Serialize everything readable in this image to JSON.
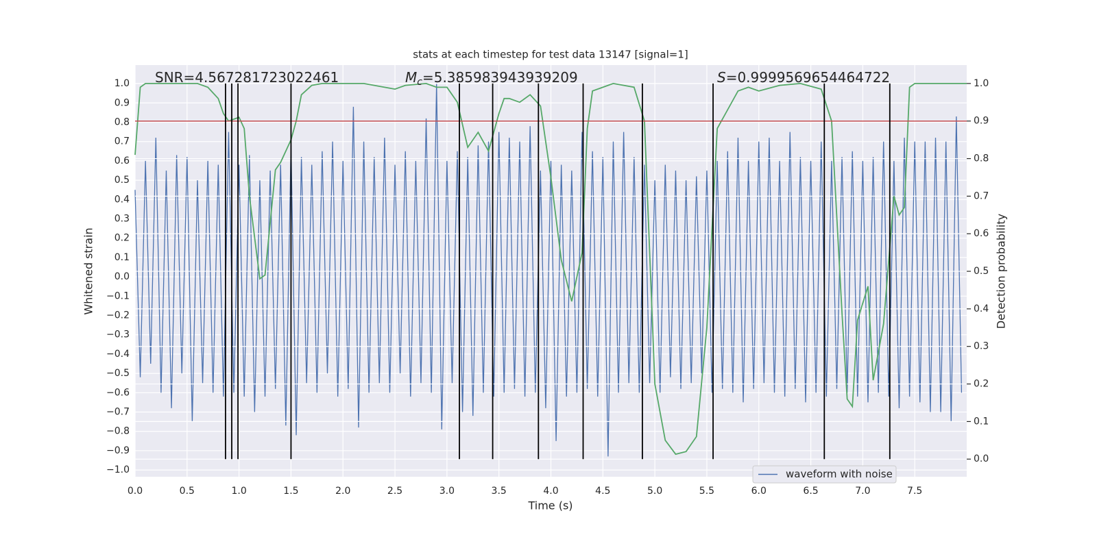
{
  "chart_data": {
    "type": "line",
    "title": "stats at each timestep for test data 13147 [signal=1]",
    "xlabel": "Time (s)",
    "ylabel": "Whitened strain",
    "y2label": "Detection probability",
    "xlim": [
      0,
      8
    ],
    "ylim": [
      -1.035,
      1.096
    ],
    "y2lim": [
      -0.047,
      1.049
    ],
    "xticks": [
      {
        "value": 0,
        "label": "0.0"
      },
      0.5,
      {
        "value": 1,
        "label": "1.0"
      },
      1.5,
      {
        "value": 2,
        "label": "2.0"
      },
      2.5,
      {
        "value": 3,
        "label": "3.0"
      },
      3.5,
      {
        "value": 4,
        "label": "4.0"
      },
      4.5,
      {
        "value": 5,
        "label": "5.0"
      },
      5.5,
      {
        "value": 6,
        "label": "6.0"
      },
      6.5,
      {
        "value": 7,
        "label": "7.0"
      },
      7.5
    ],
    "yticks": [
      {
        "value": -1,
        "label": "−1.0"
      },
      {
        "value": -0.9,
        "label": "−0.9"
      },
      {
        "value": -0.8,
        "label": "−0.8"
      },
      {
        "value": -0.7,
        "label": "−0.7"
      },
      {
        "value": -0.6,
        "label": "−0.6"
      },
      {
        "value": -0.5,
        "label": "−0.5"
      },
      {
        "value": -0.4,
        "label": "−0.4"
      },
      {
        "value": -0.3,
        "label": "−0.3"
      },
      {
        "value": -0.2,
        "label": "−0.2"
      },
      {
        "value": -0.1,
        "label": "−0.1"
      },
      {
        "value": 0,
        "label": "0.0"
      },
      0.1,
      0.2,
      0.3,
      0.4,
      0.5,
      0.6,
      0.7,
      0.8,
      0.9,
      {
        "value": 1,
        "label": "1.0"
      }
    ],
    "y2ticks": [
      {
        "value": 0,
        "label": "0.0"
      },
      0.1,
      0.2,
      0.3,
      0.4,
      0.5,
      0.6,
      0.7,
      0.8,
      0.9,
      {
        "value": 1,
        "label": "1.0"
      }
    ],
    "grid": true,
    "legend": "lower right",
    "annotations": [
      {
        "text": "SNR=4.567281723022461"
      },
      {
        "symbol": "M",
        "subscript": "c",
        "text": "=5.385983943939209"
      },
      {
        "symbol": "S",
        "text": "=0.9999569654464722"
      }
    ],
    "hline": {
      "value": 0.9,
      "axis": "y2",
      "color": "#c44e52"
    },
    "vlines": [
      0.87,
      0.93,
      0.99,
      1.5,
      3.12,
      3.44,
      3.88,
      4.31,
      4.88,
      5.56,
      6.63,
      7.26
    ],
    "series": [
      {
        "name": "waveform with noise",
        "color": "#4c72b0",
        "x": [
          0,
          0.05,
          0.1,
          0.15,
          0.2,
          0.25,
          0.3,
          0.35,
          0.4,
          0.45,
          0.5,
          0.55,
          0.6,
          0.65,
          0.7,
          0.75,
          0.8,
          0.85,
          0.9,
          0.95,
          1,
          1.05,
          1.1,
          1.15,
          1.2,
          1.25,
          1.3,
          1.35,
          1.4,
          1.45,
          1.5,
          1.55,
          1.6,
          1.65,
          1.7,
          1.75,
          1.8,
          1.85,
          1.9,
          1.95,
          2,
          2.05,
          2.1,
          2.15,
          2.2,
          2.25,
          2.3,
          2.35,
          2.4,
          2.45,
          2.5,
          2.55,
          2.6,
          2.65,
          2.7,
          2.75,
          2.8,
          2.85,
          2.9,
          2.95,
          3,
          3.05,
          3.1,
          3.15,
          3.2,
          3.25,
          3.3,
          3.35,
          3.4,
          3.45,
          3.5,
          3.55,
          3.6,
          3.65,
          3.7,
          3.75,
          3.8,
          3.85,
          3.9,
          3.95,
          4,
          4.05,
          4.1,
          4.15,
          4.2,
          4.25,
          4.3,
          4.35,
          4.4,
          4.45,
          4.5,
          4.55,
          4.6,
          4.65,
          4.7,
          4.75,
          4.8,
          4.85,
          4.9,
          4.95,
          5,
          5.05,
          5.1,
          5.15,
          5.2,
          5.25,
          5.3,
          5.35,
          5.4,
          5.45,
          5.5,
          5.55,
          5.6,
          5.65,
          5.7,
          5.75,
          5.8,
          5.85,
          5.9,
          5.95,
          6,
          6.05,
          6.1,
          6.15,
          6.2,
          6.25,
          6.3,
          6.35,
          6.4,
          6.45,
          6.5,
          6.55,
          6.6,
          6.65,
          6.7,
          6.75,
          6.8,
          6.85,
          6.9,
          6.95,
          7,
          7.05,
          7.1,
          7.15,
          7.2,
          7.25,
          7.3,
          7.35,
          7.4,
          7.45,
          7.5,
          7.55,
          7.6,
          7.65,
          7.7,
          7.75,
          7.8,
          7.85,
          7.9,
          7.95
        ],
        "values": [
          0.45,
          -0.52,
          0.6,
          -0.45,
          0.72,
          -0.6,
          0.55,
          -0.68,
          0.63,
          -0.5,
          0.62,
          -0.75,
          0.5,
          -0.55,
          0.6,
          -0.6,
          0.58,
          -0.62,
          0.75,
          -0.6,
          0.58,
          -0.62,
          0.63,
          -0.7,
          0.5,
          -0.62,
          0.55,
          -0.58,
          0.58,
          -0.77,
          0.68,
          -0.82,
          0.62,
          -0.55,
          0.58,
          -0.6,
          0.65,
          -0.5,
          0.7,
          -0.62,
          0.6,
          -0.58,
          0.88,
          -0.78,
          0.7,
          -0.6,
          0.62,
          -0.55,
          0.72,
          -0.6,
          0.58,
          -0.5,
          0.65,
          -0.62,
          0.6,
          -0.55,
          0.82,
          -0.6,
          1.0,
          -0.79,
          0.6,
          -0.55,
          0.65,
          -0.7,
          0.62,
          -0.72,
          0.68,
          -0.6,
          0.7,
          -0.62,
          0.75,
          -0.6,
          0.72,
          -0.58,
          0.7,
          -0.62,
          0.78,
          -0.6,
          0.55,
          -0.68,
          0.6,
          -0.85,
          0.58,
          -0.62,
          0.55,
          -0.6,
          0.75,
          -0.58,
          0.65,
          -0.62,
          0.62,
          -0.93,
          0.7,
          -0.6,
          0.75,
          -0.55,
          0.62,
          -0.6,
          0.58,
          -0.55,
          0.5,
          -0.6,
          0.58,
          -0.52,
          0.55,
          -0.58,
          0.5,
          -0.55,
          0.52,
          -0.5,
          0.55,
          -0.6,
          0.6,
          -0.58,
          0.65,
          -0.6,
          0.72,
          -0.65,
          0.6,
          -0.58,
          0.7,
          -0.55,
          0.72,
          -0.6,
          0.6,
          -0.62,
          0.75,
          -0.58,
          0.62,
          -0.65,
          0.6,
          -0.6,
          0.7,
          -0.62,
          0.6,
          -0.58,
          0.62,
          -0.6,
          0.65,
          -0.62,
          0.6,
          -0.65,
          0.62,
          -0.6,
          0.7,
          -0.62,
          0.6,
          -0.68,
          0.72,
          -0.62,
          0.7,
          -0.65,
          0.7,
          -0.7,
          0.72,
          -0.7,
          0.7,
          -0.75,
          0.83,
          -0.6
        ]
      },
      {
        "color": "#55a868",
        "axis": "y2",
        "x": [
          0,
          0.05,
          0.1,
          0.2,
          0.3,
          0.4,
          0.5,
          0.6,
          0.7,
          0.8,
          0.85,
          0.9,
          1.0,
          1.05,
          1.1,
          1.2,
          1.25,
          1.3,
          1.35,
          1.4,
          1.5,
          1.55,
          1.6,
          1.7,
          1.8,
          2.0,
          2.2,
          2.4,
          2.5,
          2.6,
          2.8,
          2.9,
          3.0,
          3.1,
          3.2,
          3.3,
          3.4,
          3.5,
          3.55,
          3.6,
          3.7,
          3.8,
          3.9,
          4.0,
          4.1,
          4.2,
          4.3,
          4.35,
          4.4,
          4.5,
          4.6,
          4.8,
          4.9,
          5.0,
          5.1,
          5.2,
          5.3,
          5.4,
          5.5,
          5.6,
          5.7,
          5.8,
          5.9,
          6.0,
          6.2,
          6.4,
          6.6,
          6.7,
          6.8,
          6.85,
          6.9,
          6.95,
          7.05,
          7.1,
          7.2,
          7.3,
          7.35,
          7.4,
          7.45,
          7.5,
          8.0
        ],
        "values": [
          0.81,
          0.99,
          1.0,
          1.0,
          1.0,
          1.0,
          1.0,
          1.0,
          0.99,
          0.96,
          0.92,
          0.9,
          0.91,
          0.88,
          0.7,
          0.48,
          0.49,
          0.63,
          0.77,
          0.79,
          0.85,
          0.9,
          0.97,
          0.995,
          1.0,
          1.0,
          1.0,
          0.99,
          0.985,
          0.995,
          1.0,
          0.99,
          0.99,
          0.95,
          0.83,
          0.87,
          0.82,
          0.92,
          0.96,
          0.96,
          0.95,
          0.97,
          0.94,
          0.75,
          0.53,
          0.42,
          0.55,
          0.88,
          0.98,
          0.99,
          1.0,
          0.99,
          0.9,
          0.2,
          0.05,
          0.013,
          0.02,
          0.06,
          0.35,
          0.88,
          0.93,
          0.98,
          0.99,
          0.98,
          0.995,
          1.0,
          0.985,
          0.9,
          0.39,
          0.16,
          0.14,
          0.37,
          0.46,
          0.21,
          0.36,
          0.7,
          0.65,
          0.67,
          0.99,
          1.0,
          1.0
        ]
      }
    ]
  }
}
